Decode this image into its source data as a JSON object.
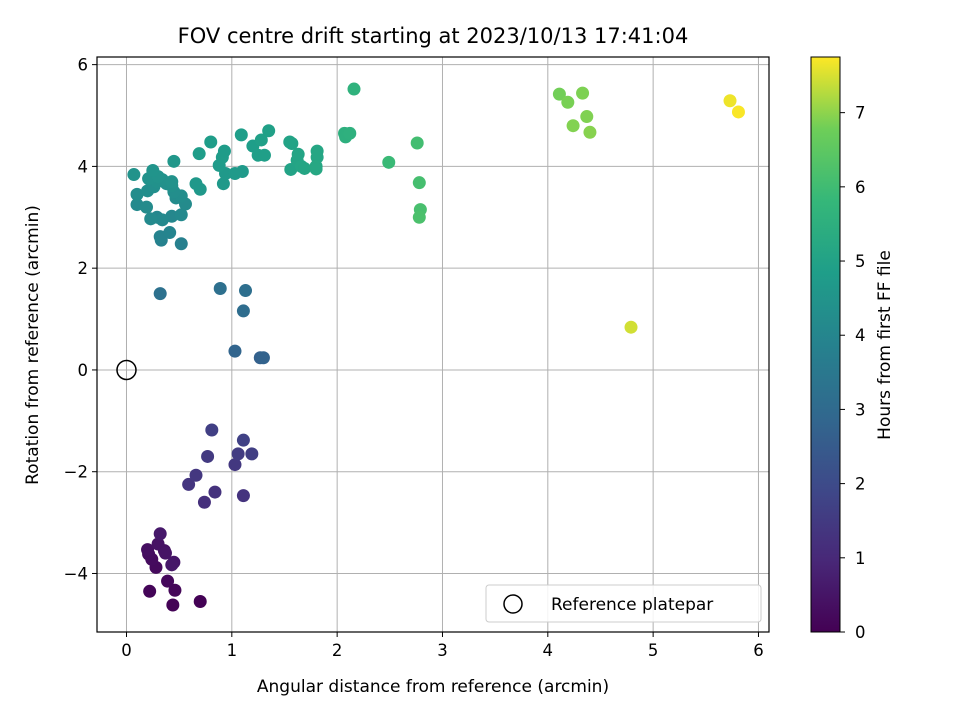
{
  "chart_data": {
    "type": "scatter",
    "title": "FOV centre drift starting at 2023/10/13 17:41:04",
    "xlabel": "Angular distance from reference (arcmin)",
    "ylabel": "Rotation from reference (arcmin)",
    "xlim": [
      -0.28,
      6.1
    ],
    "ylim": [
      -5.15,
      6.15
    ],
    "xticks": [
      0,
      1,
      2,
      3,
      4,
      5,
      6
    ],
    "yticks": [
      -4,
      -2,
      0,
      2,
      4,
      6
    ],
    "grid": true,
    "colormap": "viridis",
    "colorbar": {
      "label": "Hours from first FF file",
      "range": [
        0,
        7.75
      ],
      "ticks": [
        0,
        1,
        2,
        3,
        4,
        5,
        6,
        7
      ]
    },
    "reference_point": {
      "x": 0,
      "y": 0
    },
    "legend": {
      "entries": [
        "Reference platepar"
      ],
      "position": "lower right"
    },
    "points": [
      {
        "x": 0.7,
        "y": -4.55,
        "hours": 0.02
      },
      {
        "x": 0.44,
        "y": -4.62,
        "hours": 0.06
      },
      {
        "x": 0.22,
        "y": -4.35,
        "hours": 0.1
      },
      {
        "x": 0.46,
        "y": -4.33,
        "hours": 0.14
      },
      {
        "x": 0.39,
        "y": -4.15,
        "hours": 0.18
      },
      {
        "x": 0.28,
        "y": -3.88,
        "hours": 0.22
      },
      {
        "x": 0.24,
        "y": -3.72,
        "hours": 0.26
      },
      {
        "x": 0.21,
        "y": -3.62,
        "hours": 0.3
      },
      {
        "x": 0.2,
        "y": -3.53,
        "hours": 0.34
      },
      {
        "x": 0.36,
        "y": -3.55,
        "hours": 0.38
      },
      {
        "x": 0.3,
        "y": -3.42,
        "hours": 0.42
      },
      {
        "x": 0.37,
        "y": -3.6,
        "hours": 0.46
      },
      {
        "x": 0.45,
        "y": -3.78,
        "hours": 0.5
      },
      {
        "x": 0.43,
        "y": -3.83,
        "hours": 0.54
      },
      {
        "x": 0.32,
        "y": -3.22,
        "hours": 0.58
      },
      {
        "x": 0.74,
        "y": -2.6,
        "hours": 1.2
      },
      {
        "x": 0.84,
        "y": -2.4,
        "hours": 1.25
      },
      {
        "x": 1.11,
        "y": -2.47,
        "hours": 1.3
      },
      {
        "x": 0.59,
        "y": -2.25,
        "hours": 1.35
      },
      {
        "x": 0.66,
        "y": -2.07,
        "hours": 1.4
      },
      {
        "x": 1.03,
        "y": -1.86,
        "hours": 1.45
      },
      {
        "x": 0.77,
        "y": -1.7,
        "hours": 1.5
      },
      {
        "x": 1.06,
        "y": -1.65,
        "hours": 1.55
      },
      {
        "x": 1.19,
        "y": -1.65,
        "hours": 1.6
      },
      {
        "x": 0.81,
        "y": -1.18,
        "hours": 1.65
      },
      {
        "x": 1.11,
        "y": -1.38,
        "hours": 1.7
      },
      {
        "x": 1.27,
        "y": 0.24,
        "hours": 2.7
      },
      {
        "x": 1.3,
        "y": 0.24,
        "hours": 2.75
      },
      {
        "x": 1.03,
        "y": 0.37,
        "hours": 2.8
      },
      {
        "x": 1.11,
        "y": 1.16,
        "hours": 3.1
      },
      {
        "x": 1.13,
        "y": 1.56,
        "hours": 3.15
      },
      {
        "x": 0.89,
        "y": 1.6,
        "hours": 3.2
      },
      {
        "x": 0.32,
        "y": 1.5,
        "hours": 3.25
      },
      {
        "x": 0.52,
        "y": 2.48,
        "hours": 3.8
      },
      {
        "x": 0.33,
        "y": 2.55,
        "hours": 3.85
      },
      {
        "x": 0.32,
        "y": 2.62,
        "hours": 3.9
      },
      {
        "x": 0.41,
        "y": 2.7,
        "hours": 3.95
      },
      {
        "x": 0.29,
        "y": 3.0,
        "hours": 4.0
      },
      {
        "x": 0.43,
        "y": 3.02,
        "hours": 4.05
      },
      {
        "x": 0.52,
        "y": 3.05,
        "hours": 4.1
      },
      {
        "x": 0.34,
        "y": 2.95,
        "hours": 4.12
      },
      {
        "x": 0.23,
        "y": 2.97,
        "hours": 4.14
      },
      {
        "x": 0.1,
        "y": 3.25,
        "hours": 4.16
      },
      {
        "x": 0.19,
        "y": 3.2,
        "hours": 4.18
      },
      {
        "x": 0.56,
        "y": 3.26,
        "hours": 4.2
      },
      {
        "x": 0.47,
        "y": 3.38,
        "hours": 4.22
      },
      {
        "x": 0.52,
        "y": 3.42,
        "hours": 4.24
      },
      {
        "x": 0.1,
        "y": 3.45,
        "hours": 4.26
      },
      {
        "x": 0.2,
        "y": 3.52,
        "hours": 4.28
      },
      {
        "x": 0.45,
        "y": 3.5,
        "hours": 4.3
      },
      {
        "x": 0.26,
        "y": 3.6,
        "hours": 4.32
      },
      {
        "x": 0.38,
        "y": 3.66,
        "hours": 4.34
      },
      {
        "x": 0.43,
        "y": 3.62,
        "hours": 4.36
      },
      {
        "x": 0.29,
        "y": 3.7,
        "hours": 4.38
      },
      {
        "x": 0.34,
        "y": 3.74,
        "hours": 4.4
      },
      {
        "x": 0.21,
        "y": 3.76,
        "hours": 4.42
      },
      {
        "x": 0.43,
        "y": 3.7,
        "hours": 4.44
      },
      {
        "x": 0.07,
        "y": 3.84,
        "hours": 4.46
      },
      {
        "x": 0.3,
        "y": 3.8,
        "hours": 4.48
      },
      {
        "x": 0.25,
        "y": 3.92,
        "hours": 4.5
      },
      {
        "x": 0.45,
        "y": 4.1,
        "hours": 4.6
      },
      {
        "x": 0.7,
        "y": 3.55,
        "hours": 4.62
      },
      {
        "x": 0.66,
        "y": 3.66,
        "hours": 4.64
      },
      {
        "x": 0.92,
        "y": 3.66,
        "hours": 4.66
      },
      {
        "x": 0.94,
        "y": 3.86,
        "hours": 4.68
      },
      {
        "x": 1.03,
        "y": 3.86,
        "hours": 4.7
      },
      {
        "x": 1.1,
        "y": 3.9,
        "hours": 4.72
      },
      {
        "x": 0.88,
        "y": 4.02,
        "hours": 4.74
      },
      {
        "x": 0.91,
        "y": 4.18,
        "hours": 4.76
      },
      {
        "x": 0.93,
        "y": 4.3,
        "hours": 4.78
      },
      {
        "x": 0.69,
        "y": 4.25,
        "hours": 4.8
      },
      {
        "x": 0.8,
        "y": 4.48,
        "hours": 4.82
      },
      {
        "x": 1.09,
        "y": 4.62,
        "hours": 4.84
      },
      {
        "x": 1.2,
        "y": 4.4,
        "hours": 4.86
      },
      {
        "x": 1.25,
        "y": 4.22,
        "hours": 4.88
      },
      {
        "x": 1.31,
        "y": 4.22,
        "hours": 4.9
      },
      {
        "x": 1.28,
        "y": 4.52,
        "hours": 4.92
      },
      {
        "x": 1.35,
        "y": 4.7,
        "hours": 4.94
      },
      {
        "x": 1.57,
        "y": 4.45,
        "hours": 5.0
      },
      {
        "x": 1.55,
        "y": 4.48,
        "hours": 5.02
      },
      {
        "x": 1.56,
        "y": 3.94,
        "hours": 5.04
      },
      {
        "x": 1.63,
        "y": 4.24,
        "hours": 5.06
      },
      {
        "x": 1.62,
        "y": 4.12,
        "hours": 5.08
      },
      {
        "x": 1.66,
        "y": 4.0,
        "hours": 5.1
      },
      {
        "x": 1.69,
        "y": 3.96,
        "hours": 5.12
      },
      {
        "x": 1.81,
        "y": 4.3,
        "hours": 5.14
      },
      {
        "x": 1.81,
        "y": 4.18,
        "hours": 5.16
      },
      {
        "x": 1.8,
        "y": 4.0,
        "hours": 5.18
      },
      {
        "x": 1.8,
        "y": 3.95,
        "hours": 5.2
      },
      {
        "x": 2.07,
        "y": 4.65,
        "hours": 5.5
      },
      {
        "x": 2.08,
        "y": 4.58,
        "hours": 5.52
      },
      {
        "x": 2.12,
        "y": 4.65,
        "hours": 5.54
      },
      {
        "x": 2.16,
        "y": 5.52,
        "hours": 5.6
      },
      {
        "x": 2.49,
        "y": 4.08,
        "hours": 5.9
      },
      {
        "x": 2.76,
        "y": 4.46,
        "hours": 6.05
      },
      {
        "x": 2.78,
        "y": 3.68,
        "hours": 6.1
      },
      {
        "x": 2.79,
        "y": 3.15,
        "hours": 6.15
      },
      {
        "x": 2.78,
        "y": 3.0,
        "hours": 6.2
      },
      {
        "x": 4.11,
        "y": 5.42,
        "hours": 6.8
      },
      {
        "x": 4.19,
        "y": 5.26,
        "hours": 6.85
      },
      {
        "x": 4.33,
        "y": 5.44,
        "hours": 6.88
      },
      {
        "x": 4.37,
        "y": 4.98,
        "hours": 6.9
      },
      {
        "x": 4.24,
        "y": 4.8,
        "hours": 6.92
      },
      {
        "x": 4.4,
        "y": 4.67,
        "hours": 6.95
      },
      {
        "x": 4.79,
        "y": 0.84,
        "hours": 7.45
      },
      {
        "x": 5.73,
        "y": 5.29,
        "hours": 7.65
      },
      {
        "x": 5.81,
        "y": 5.07,
        "hours": 7.72
      }
    ]
  }
}
